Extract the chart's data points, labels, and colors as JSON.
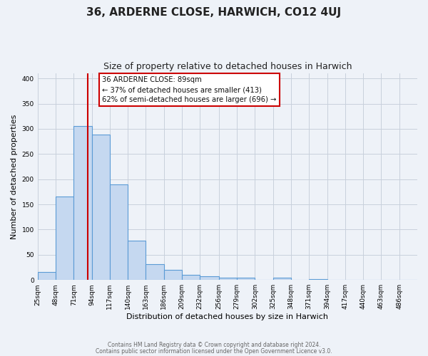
{
  "title": "36, ARDERNE CLOSE, HARWICH, CO12 4UJ",
  "subtitle": "Size of property relative to detached houses in Harwich",
  "xlabel": "Distribution of detached houses by size in Harwich",
  "ylabel": "Number of detached properties",
  "bin_edges": [
    25,
    48,
    71,
    94,
    117,
    140,
    163,
    186,
    209,
    232,
    256,
    279,
    302,
    325,
    348,
    371,
    394,
    417,
    440,
    463,
    486,
    509
  ],
  "bar_heights": [
    16,
    166,
    305,
    288,
    190,
    78,
    32,
    20,
    10,
    8,
    5,
    5,
    0,
    4,
    0,
    2,
    0,
    0,
    1,
    0,
    1
  ],
  "bar_color": "#c5d8f0",
  "bar_edge_color": "#5b9bd5",
  "property_size": 89,
  "vline_color": "#cc0000",
  "ylim": [
    0,
    410
  ],
  "yticks": [
    0,
    50,
    100,
    150,
    200,
    250,
    300,
    350,
    400
  ],
  "xtick_labels": [
    "25sqm",
    "48sqm",
    "71sqm",
    "94sqm",
    "117sqm",
    "140sqm",
    "163sqm",
    "186sqm",
    "209sqm",
    "232sqm",
    "256sqm",
    "279sqm",
    "302sqm",
    "325sqm",
    "348sqm",
    "371sqm",
    "394sqm",
    "417sqm",
    "440sqm",
    "463sqm",
    "486sqm"
  ],
  "xtick_positions": [
    25,
    48,
    71,
    94,
    117,
    140,
    163,
    186,
    209,
    232,
    256,
    279,
    302,
    325,
    348,
    371,
    394,
    417,
    440,
    463,
    486
  ],
  "annotation_title": "36 ARDERNE CLOSE: 89sqm",
  "annotation_line1": "← 37% of detached houses are smaller (413)",
  "annotation_line2": "62% of semi-detached houses are larger (696) →",
  "annotation_box_color": "#ffffff",
  "annotation_box_edge": "#cc0000",
  "grid_color": "#c8d0dc",
  "bg_color": "#eef2f8",
  "footer1": "Contains HM Land Registry data © Crown copyright and database right 2024.",
  "footer2": "Contains public sector information licensed under the Open Government Licence v3.0."
}
